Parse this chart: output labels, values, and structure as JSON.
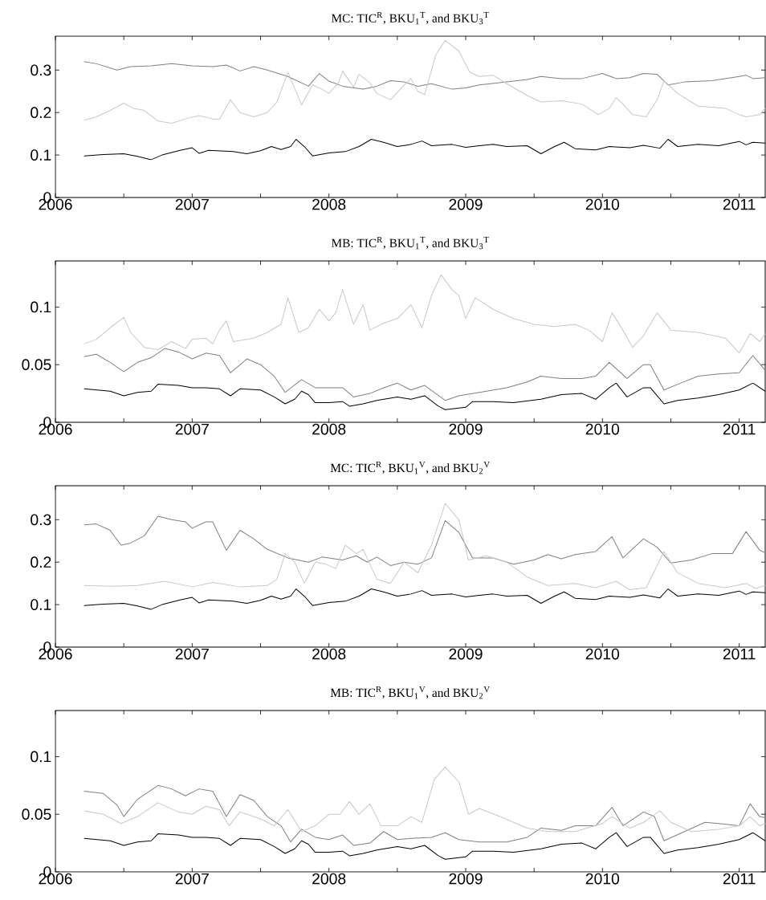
{
  "chart_data": [
    {
      "type": "line",
      "title": "MC: TIC$^{R}$, BKU$_{1}$$^{T}$, and BKU$_{3}$$^{T}$",
      "xlim": [
        2006,
        2011.19
      ],
      "xticks": [
        2006,
        {
          "value": 2006.5,
          "label": null
        },
        2007,
        {
          "value": 2007.5,
          "label": null
        },
        2008,
        {
          "value": 2008.5,
          "label": null
        },
        2009,
        {
          "value": 2009.5,
          "label": null
        },
        2010,
        {
          "value": 2010.5,
          "label": null
        },
        2011
      ],
      "ylim": [
        0,
        0.38
      ],
      "yticks": [
        0,
        0.1,
        0.2,
        0.3
      ],
      "series": [
        {
          "color": "#000000",
          "x": [
            2006.21,
            2006.35,
            2006.5,
            2006.6,
            2006.7,
            2006.78,
            2006.9,
            2007.0,
            2007.05,
            2007.12,
            2007.3,
            2007.4,
            2007.5,
            2007.58,
            2007.65,
            2007.72,
            2007.76,
            2007.82,
            2007.88,
            2008.0,
            2008.12,
            2008.22,
            2008.31,
            2008.4,
            2008.5,
            2008.6,
            2008.68,
            2008.75,
            2008.9,
            2009.0,
            2009.1,
            2009.2,
            2009.3,
            2009.45,
            2009.55,
            2009.65,
            2009.72,
            2009.8,
            2009.95,
            2010.05,
            2010.2,
            2010.3,
            2010.42,
            2010.48,
            2010.55,
            2010.7,
            2010.85,
            2011.0,
            2011.05,
            2011.1,
            2011.19
          ],
          "values": [
            0.098,
            0.101,
            0.103,
            0.097,
            0.089,
            0.1,
            0.11,
            0.117,
            0.104,
            0.111,
            0.108,
            0.103,
            0.11,
            0.12,
            0.113,
            0.12,
            0.137,
            0.12,
            0.098,
            0.105,
            0.108,
            0.12,
            0.137,
            0.13,
            0.12,
            0.125,
            0.133,
            0.122,
            0.125,
            0.118,
            0.122,
            0.125,
            0.12,
            0.122,
            0.103,
            0.12,
            0.13,
            0.115,
            0.112,
            0.12,
            0.117,
            0.123,
            0.116,
            0.137,
            0.12,
            0.125,
            0.122,
            0.132,
            0.124,
            0.13,
            0.128
          ]
        },
        {
          "color": "#808080",
          "x": [
            2006.21,
            2006.3,
            2006.45,
            2006.55,
            2006.7,
            2006.85,
            2007.0,
            2007.15,
            2007.25,
            2007.35,
            2007.45,
            2007.55,
            2007.7,
            2007.85,
            2007.93,
            2008.0,
            2008.1,
            2008.25,
            2008.35,
            2008.45,
            2008.55,
            2008.65,
            2008.75,
            2008.9,
            2009.0,
            2009.1,
            2009.3,
            2009.45,
            2009.55,
            2009.7,
            2009.85,
            2010.0,
            2010.1,
            2010.2,
            2010.3,
            2010.4,
            2010.48,
            2010.6,
            2010.8,
            2011.0,
            2011.05,
            2011.1,
            2011.19
          ],
          "values": [
            0.32,
            0.315,
            0.3,
            0.308,
            0.31,
            0.315,
            0.31,
            0.308,
            0.312,
            0.298,
            0.308,
            0.3,
            0.285,
            0.262,
            0.292,
            0.274,
            0.262,
            0.255,
            0.262,
            0.275,
            0.272,
            0.262,
            0.268,
            0.255,
            0.258,
            0.265,
            0.272,
            0.278,
            0.285,
            0.28,
            0.28,
            0.292,
            0.28,
            0.282,
            0.292,
            0.29,
            0.265,
            0.272,
            0.275,
            0.285,
            0.288,
            0.28,
            0.282
          ]
        },
        {
          "color": "#c8c8c8",
          "x": [
            2006.21,
            2006.3,
            2006.4,
            2006.5,
            2006.57,
            2006.65,
            2006.75,
            2006.85,
            2006.95,
            2007.05,
            2007.15,
            2007.2,
            2007.28,
            2007.35,
            2007.45,
            2007.55,
            2007.62,
            2007.7,
            2007.8,
            2007.88,
            2007.95,
            2008.0,
            2008.07,
            2008.1,
            2008.18,
            2008.22,
            2008.3,
            2008.35,
            2008.45,
            2008.55,
            2008.6,
            2008.65,
            2008.7,
            2008.78,
            2008.85,
            2008.95,
            2009.03,
            2009.1,
            2009.2,
            2009.3,
            2009.45,
            2009.55,
            2009.7,
            2009.85,
            2009.97,
            2010.05,
            2010.1,
            2010.15,
            2010.22,
            2010.32,
            2010.4,
            2010.45,
            2010.55,
            2010.7,
            2010.9,
            2011.0,
            2011.05,
            2011.15,
            2011.19
          ],
          "values": [
            0.182,
            0.19,
            0.205,
            0.222,
            0.21,
            0.205,
            0.18,
            0.175,
            0.185,
            0.193,
            0.185,
            0.185,
            0.23,
            0.2,
            0.19,
            0.2,
            0.225,
            0.295,
            0.218,
            0.265,
            0.255,
            0.245,
            0.27,
            0.298,
            0.26,
            0.29,
            0.27,
            0.245,
            0.23,
            0.265,
            0.28,
            0.25,
            0.242,
            0.335,
            0.37,
            0.345,
            0.295,
            0.285,
            0.288,
            0.268,
            0.24,
            0.225,
            0.228,
            0.22,
            0.195,
            0.21,
            0.235,
            0.22,
            0.195,
            0.19,
            0.23,
            0.275,
            0.245,
            0.215,
            0.21,
            0.195,
            0.19,
            0.195,
            0.21
          ]
        }
      ]
    },
    {
      "type": "line",
      "title": "MB: TIC$^{R}$, BKU$_{1}$$^{T}$, and BKU$_{3}$$^{T}$",
      "xlim": [
        2006,
        2011.19
      ],
      "xticks": [
        2006,
        {
          "value": 2006.5,
          "label": null
        },
        2007,
        {
          "value": 2007.5,
          "label": null
        },
        2008,
        {
          "value": 2008.5,
          "label": null
        },
        2009,
        {
          "value": 2009.5,
          "label": null
        },
        2010,
        {
          "value": 2010.5,
          "label": null
        },
        2011
      ],
      "ylim": [
        0,
        0.14
      ],
      "yticks": [
        0,
        0.05,
        0.1
      ],
      "series": [
        {
          "color": "#000000",
          "x": [
            2006.21,
            2006.4,
            2006.5,
            2006.6,
            2006.7,
            2006.75,
            2006.9,
            2007.0,
            2007.1,
            2007.2,
            2007.28,
            2007.35,
            2007.5,
            2007.6,
            2007.68,
            2007.75,
            2007.8,
            2007.85,
            2007.9,
            2008.0,
            2008.1,
            2008.15,
            2008.25,
            2008.35,
            2008.5,
            2008.6,
            2008.7,
            2008.8,
            2008.85,
            2009.0,
            2009.05,
            2009.2,
            2009.35,
            2009.55,
            2009.7,
            2009.85,
            2009.95,
            2010.05,
            2010.1,
            2010.18,
            2010.3,
            2010.35,
            2010.45,
            2010.55,
            2010.7,
            2010.85,
            2011.0,
            2011.1,
            2011.19
          ],
          "values": [
            0.029,
            0.027,
            0.023,
            0.026,
            0.027,
            0.033,
            0.032,
            0.03,
            0.03,
            0.029,
            0.023,
            0.029,
            0.028,
            0.022,
            0.016,
            0.02,
            0.027,
            0.024,
            0.017,
            0.017,
            0.018,
            0.014,
            0.016,
            0.019,
            0.022,
            0.02,
            0.023,
            0.014,
            0.011,
            0.013,
            0.018,
            0.018,
            0.017,
            0.02,
            0.024,
            0.025,
            0.02,
            0.03,
            0.034,
            0.022,
            0.03,
            0.03,
            0.016,
            0.019,
            0.021,
            0.024,
            0.028,
            0.034,
            0.027
          ]
        },
        {
          "color": "#808080",
          "x": [
            2006.21,
            2006.3,
            2006.4,
            2006.5,
            2006.6,
            2006.7,
            2006.8,
            2006.9,
            2007.0,
            2007.1,
            2007.2,
            2007.28,
            2007.4,
            2007.5,
            2007.6,
            2007.68,
            2007.8,
            2007.9,
            2008.0,
            2008.1,
            2008.18,
            2008.3,
            2008.4,
            2008.5,
            2008.6,
            2008.7,
            2008.85,
            2008.95,
            2009.1,
            2009.3,
            2009.45,
            2009.55,
            2009.7,
            2009.85,
            2009.95,
            2010.05,
            2010.18,
            2010.3,
            2010.35,
            2010.45,
            2010.55,
            2010.7,
            2010.85,
            2011.0,
            2011.1,
            2011.19
          ],
          "values": [
            0.057,
            0.059,
            0.052,
            0.044,
            0.052,
            0.056,
            0.064,
            0.061,
            0.055,
            0.06,
            0.058,
            0.043,
            0.055,
            0.05,
            0.04,
            0.026,
            0.037,
            0.03,
            0.03,
            0.03,
            0.022,
            0.025,
            0.03,
            0.034,
            0.028,
            0.032,
            0.019,
            0.023,
            0.026,
            0.03,
            0.035,
            0.04,
            0.038,
            0.038,
            0.04,
            0.052,
            0.038,
            0.05,
            0.05,
            0.028,
            0.033,
            0.04,
            0.042,
            0.043,
            0.058,
            0.045
          ]
        },
        {
          "color": "#c8c8c8",
          "x": [
            2006.21,
            2006.3,
            2006.4,
            2006.5,
            2006.55,
            2006.65,
            2006.75,
            2006.85,
            2006.95,
            2007.0,
            2007.1,
            2007.15,
            2007.2,
            2007.25,
            2007.3,
            2007.45,
            2007.55,
            2007.65,
            2007.7,
            2007.78,
            2007.85,
            2007.93,
            2008.0,
            2008.05,
            2008.1,
            2008.18,
            2008.25,
            2008.3,
            2008.4,
            2008.5,
            2008.6,
            2008.68,
            2008.75,
            2008.82,
            2008.9,
            2008.95,
            2009.0,
            2009.07,
            2009.2,
            2009.35,
            2009.5,
            2009.65,
            2009.8,
            2009.9,
            2010.0,
            2010.07,
            2010.15,
            2010.22,
            2010.3,
            2010.4,
            2010.5,
            2010.7,
            2010.9,
            2011.0,
            2011.08,
            2011.15,
            2011.19
          ],
          "values": [
            0.068,
            0.072,
            0.082,
            0.091,
            0.078,
            0.065,
            0.063,
            0.07,
            0.064,
            0.072,
            0.073,
            0.068,
            0.08,
            0.088,
            0.07,
            0.073,
            0.078,
            0.085,
            0.108,
            0.078,
            0.082,
            0.098,
            0.088,
            0.095,
            0.115,
            0.085,
            0.102,
            0.08,
            0.086,
            0.09,
            0.102,
            0.082,
            0.11,
            0.128,
            0.115,
            0.11,
            0.09,
            0.108,
            0.098,
            0.09,
            0.085,
            0.083,
            0.085,
            0.08,
            0.07,
            0.095,
            0.08,
            0.065,
            0.075,
            0.095,
            0.08,
            0.078,
            0.073,
            0.06,
            0.077,
            0.07,
            0.077
          ]
        }
      ]
    },
    {
      "type": "line",
      "title": "MC: TIC$^{R}$, BKU$_{1}$$^{V}$, and BKU$_{2}$$^{V}$",
      "xlim": [
        2006,
        2011.19
      ],
      "xticks": [
        2006,
        {
          "value": 2006.5,
          "label": null
        },
        2007,
        {
          "value": 2007.5,
          "label": null
        },
        2008,
        {
          "value": 2008.5,
          "label": null
        },
        2009,
        {
          "value": 2009.5,
          "label": null
        },
        2010,
        {
          "value": 2010.5,
          "label": null
        },
        2011
      ],
      "ylim": [
        0,
        0.38
      ],
      "yticks": [
        0,
        0.1,
        0.2,
        0.3
      ],
      "series": [
        {
          "color": "#000000",
          "x": [
            2006.21,
            2006.35,
            2006.5,
            2006.6,
            2006.7,
            2006.78,
            2006.9,
            2007.0,
            2007.05,
            2007.12,
            2007.3,
            2007.4,
            2007.5,
            2007.58,
            2007.65,
            2007.72,
            2007.76,
            2007.82,
            2007.88,
            2008.0,
            2008.12,
            2008.22,
            2008.31,
            2008.4,
            2008.5,
            2008.6,
            2008.68,
            2008.75,
            2008.9,
            2009.0,
            2009.1,
            2009.2,
            2009.3,
            2009.45,
            2009.55,
            2009.65,
            2009.72,
            2009.8,
            2009.95,
            2010.05,
            2010.2,
            2010.3,
            2010.42,
            2010.48,
            2010.55,
            2010.7,
            2010.85,
            2011.0,
            2011.05,
            2011.1,
            2011.19
          ],
          "values": [
            0.098,
            0.101,
            0.103,
            0.097,
            0.089,
            0.1,
            0.11,
            0.117,
            0.104,
            0.111,
            0.108,
            0.103,
            0.11,
            0.12,
            0.113,
            0.12,
            0.137,
            0.12,
            0.098,
            0.105,
            0.108,
            0.12,
            0.137,
            0.13,
            0.12,
            0.125,
            0.133,
            0.122,
            0.125,
            0.118,
            0.122,
            0.125,
            0.12,
            0.122,
            0.103,
            0.12,
            0.13,
            0.115,
            0.112,
            0.12,
            0.117,
            0.123,
            0.116,
            0.137,
            0.12,
            0.125,
            0.122,
            0.132,
            0.124,
            0.13,
            0.128
          ]
        },
        {
          "color": "#808080",
          "x": [
            2006.21,
            2006.3,
            2006.4,
            2006.48,
            2006.55,
            2006.65,
            2006.75,
            2006.85,
            2006.95,
            2007.0,
            2007.1,
            2007.15,
            2007.25,
            2007.35,
            2007.45,
            2007.55,
            2007.7,
            2007.85,
            2007.95,
            2008.1,
            2008.2,
            2008.28,
            2008.35,
            2008.45,
            2008.55,
            2008.65,
            2008.75,
            2008.85,
            2008.95,
            2009.05,
            2009.2,
            2009.35,
            2009.5,
            2009.6,
            2009.7,
            2009.8,
            2009.95,
            2010.07,
            2010.15,
            2010.3,
            2010.4,
            2010.5,
            2010.65,
            2010.8,
            2010.95,
            2011.05,
            2011.15,
            2011.19
          ],
          "values": [
            0.288,
            0.29,
            0.275,
            0.24,
            0.245,
            0.262,
            0.308,
            0.3,
            0.295,
            0.28,
            0.295,
            0.295,
            0.228,
            0.275,
            0.255,
            0.23,
            0.21,
            0.2,
            0.212,
            0.205,
            0.215,
            0.2,
            0.212,
            0.192,
            0.2,
            0.195,
            0.21,
            0.298,
            0.27,
            0.21,
            0.21,
            0.195,
            0.205,
            0.218,
            0.208,
            0.218,
            0.225,
            0.26,
            0.21,
            0.255,
            0.235,
            0.198,
            0.205,
            0.22,
            0.22,
            0.272,
            0.228,
            0.222
          ]
        },
        {
          "color": "#c8c8c8",
          "x": [
            2006.21,
            2006.4,
            2006.6,
            2006.8,
            2007.0,
            2007.15,
            2007.35,
            2007.55,
            2007.62,
            2007.68,
            2007.75,
            2007.82,
            2007.9,
            2007.98,
            2008.05,
            2008.12,
            2008.2,
            2008.25,
            2008.35,
            2008.45,
            2008.55,
            2008.65,
            2008.75,
            2008.85,
            2008.95,
            2009.02,
            2009.15,
            2009.3,
            2009.45,
            2009.6,
            2009.8,
            2009.95,
            2010.1,
            2010.2,
            2010.32,
            2010.45,
            2010.55,
            2010.7,
            2010.9,
            2011.05,
            2011.12,
            2011.19
          ],
          "values": [
            0.145,
            0.143,
            0.145,
            0.155,
            0.142,
            0.152,
            0.142,
            0.145,
            0.16,
            0.22,
            0.2,
            0.15,
            0.2,
            0.195,
            0.185,
            0.24,
            0.22,
            0.23,
            0.16,
            0.15,
            0.2,
            0.175,
            0.24,
            0.338,
            0.3,
            0.205,
            0.215,
            0.2,
            0.165,
            0.145,
            0.15,
            0.14,
            0.155,
            0.135,
            0.14,
            0.225,
            0.175,
            0.15,
            0.14,
            0.15,
            0.138,
            0.145
          ]
        }
      ]
    },
    {
      "type": "line",
      "title": "MB: TIC$^{R}$, BKU$_{1}$$^{V}$, and BKU$_{2}$$^{V}$",
      "xlim": [
        2006,
        2011.19
      ],
      "xticks": [
        2006,
        {
          "value": 2006.5,
          "label": null
        },
        2007,
        {
          "value": 2007.5,
          "label": null
        },
        2008,
        {
          "value": 2008.5,
          "label": null
        },
        2009,
        {
          "value": 2009.5,
          "label": null
        },
        2010,
        {
          "value": 2010.5,
          "label": null
        },
        2011
      ],
      "ylim": [
        0,
        0.14
      ],
      "yticks": [
        0,
        0.05,
        0.1
      ],
      "series": [
        {
          "color": "#000000",
          "x": [
            2006.21,
            2006.4,
            2006.5,
            2006.6,
            2006.7,
            2006.75,
            2006.9,
            2007.0,
            2007.1,
            2007.2,
            2007.28,
            2007.35,
            2007.5,
            2007.6,
            2007.68,
            2007.75,
            2007.8,
            2007.85,
            2007.9,
            2008.0,
            2008.1,
            2008.15,
            2008.25,
            2008.35,
            2008.5,
            2008.6,
            2008.7,
            2008.8,
            2008.85,
            2009.0,
            2009.05,
            2009.2,
            2009.35,
            2009.55,
            2009.7,
            2009.85,
            2009.95,
            2010.05,
            2010.1,
            2010.18,
            2010.3,
            2010.35,
            2010.45,
            2010.55,
            2010.7,
            2010.85,
            2011.0,
            2011.1,
            2011.19
          ],
          "values": [
            0.029,
            0.027,
            0.023,
            0.026,
            0.027,
            0.033,
            0.032,
            0.03,
            0.03,
            0.029,
            0.023,
            0.029,
            0.028,
            0.022,
            0.016,
            0.02,
            0.027,
            0.024,
            0.017,
            0.017,
            0.018,
            0.014,
            0.016,
            0.019,
            0.022,
            0.02,
            0.023,
            0.014,
            0.011,
            0.013,
            0.018,
            0.018,
            0.017,
            0.02,
            0.024,
            0.025,
            0.02,
            0.03,
            0.034,
            0.022,
            0.03,
            0.03,
            0.016,
            0.019,
            0.021,
            0.024,
            0.028,
            0.034,
            0.027
          ]
        },
        {
          "color": "#808080",
          "x": [
            2006.21,
            2006.35,
            2006.45,
            2006.5,
            2006.6,
            2006.75,
            2006.85,
            2006.95,
            2007.05,
            2007.15,
            2007.25,
            2007.35,
            2007.45,
            2007.55,
            2007.65,
            2007.72,
            2007.8,
            2007.9,
            2008.0,
            2008.1,
            2008.18,
            2008.3,
            2008.4,
            2008.5,
            2008.6,
            2008.75,
            2008.85,
            2008.95,
            2009.1,
            2009.3,
            2009.45,
            2009.55,
            2009.7,
            2009.8,
            2009.95,
            2010.07,
            2010.15,
            2010.3,
            2010.38,
            2010.45,
            2010.6,
            2010.75,
            2010.85,
            2011.0,
            2011.08,
            2011.15,
            2011.19
          ],
          "values": [
            0.07,
            0.068,
            0.058,
            0.048,
            0.063,
            0.075,
            0.072,
            0.066,
            0.072,
            0.07,
            0.048,
            0.067,
            0.062,
            0.048,
            0.04,
            0.026,
            0.037,
            0.03,
            0.028,
            0.032,
            0.023,
            0.025,
            0.035,
            0.028,
            0.029,
            0.03,
            0.034,
            0.028,
            0.026,
            0.026,
            0.03,
            0.038,
            0.036,
            0.04,
            0.04,
            0.056,
            0.04,
            0.052,
            0.048,
            0.027,
            0.035,
            0.043,
            0.042,
            0.04,
            0.059,
            0.048,
            0.047
          ]
        },
        {
          "color": "#c8c8c8",
          "x": [
            2006.21,
            2006.35,
            2006.48,
            2006.6,
            2006.75,
            2006.9,
            2007.0,
            2007.1,
            2007.2,
            2007.27,
            2007.35,
            2007.5,
            2007.6,
            2007.7,
            2007.8,
            2007.9,
            2008.0,
            2008.08,
            2008.15,
            2008.22,
            2008.3,
            2008.38,
            2008.5,
            2008.6,
            2008.68,
            2008.77,
            2008.85,
            2008.95,
            2009.02,
            2009.1,
            2009.25,
            2009.45,
            2009.6,
            2009.8,
            2010.0,
            2010.07,
            2010.2,
            2010.3,
            2010.42,
            2010.5,
            2010.65,
            2010.85,
            2011.0,
            2011.08,
            2011.15,
            2011.19
          ],
          "values": [
            0.053,
            0.05,
            0.042,
            0.048,
            0.06,
            0.052,
            0.05,
            0.057,
            0.054,
            0.04,
            0.052,
            0.046,
            0.04,
            0.054,
            0.035,
            0.04,
            0.05,
            0.05,
            0.061,
            0.05,
            0.059,
            0.04,
            0.04,
            0.048,
            0.043,
            0.08,
            0.091,
            0.078,
            0.05,
            0.055,
            0.048,
            0.038,
            0.035,
            0.035,
            0.042,
            0.048,
            0.038,
            0.043,
            0.053,
            0.043,
            0.035,
            0.037,
            0.04,
            0.048,
            0.04,
            0.042
          ]
        }
      ]
    }
  ]
}
